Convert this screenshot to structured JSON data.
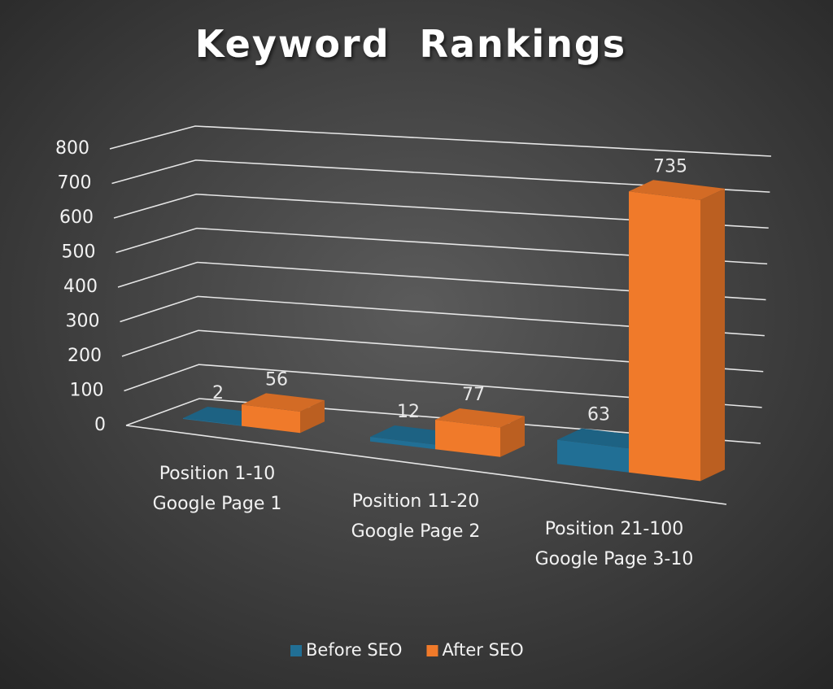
{
  "chart_data": {
    "type": "bar3d",
    "title": "Keyword  Rankings",
    "categories": [
      [
        "Position 1-10",
        "Google Page 1"
      ],
      [
        "Position 11-20",
        "Google Page 2"
      ],
      [
        "Position 21-100",
        "Google Page 3-10"
      ]
    ],
    "series": [
      {
        "name": "Before SEO",
        "color": "#216f95",
        "values": [
          2,
          12,
          63
        ]
      },
      {
        "name": "After SEO",
        "color": "#f07a2a",
        "values": [
          56,
          77,
          735
        ]
      }
    ],
    "ylim": [
      0,
      800
    ],
    "yticks": [
      0,
      100,
      200,
      300,
      400,
      500,
      600,
      700,
      800
    ],
    "grid": true,
    "legend": "bottom"
  }
}
